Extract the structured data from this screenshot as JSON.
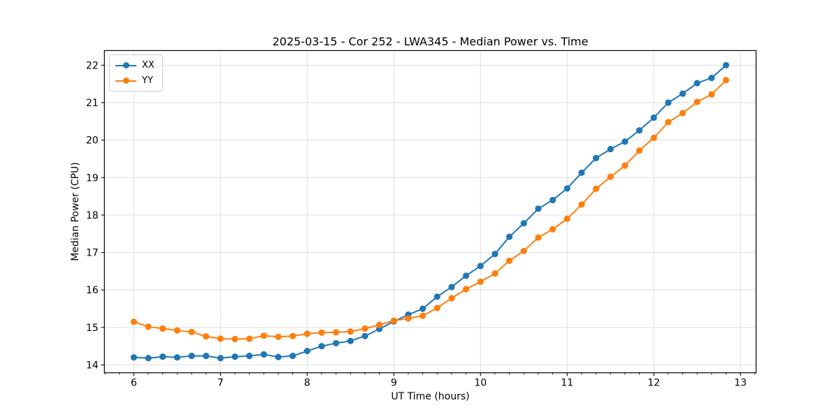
{
  "chart_data": {
    "type": "line",
    "title": "2025-03-15 - Cor 252 - LWA345 - Median Power vs. Time",
    "xlabel": "UT Time (hours)",
    "ylabel": "Median Power (CPU)",
    "xlim": [
      5.66,
      13.18
    ],
    "ylim": [
      13.79,
      22.39
    ],
    "xticks": [
      6,
      7,
      8,
      9,
      10,
      11,
      12,
      13
    ],
    "yticks": [
      14,
      15,
      16,
      17,
      18,
      19,
      20,
      21,
      22
    ],
    "minor_xtick_step": 0.166667,
    "grid": true,
    "grid_color": "#dedede",
    "legend_position": "upper left",
    "x": [
      6.0,
      6.167,
      6.333,
      6.5,
      6.667,
      6.833,
      7.0,
      7.167,
      7.333,
      7.5,
      7.667,
      7.833,
      8.0,
      8.167,
      8.333,
      8.5,
      8.667,
      8.833,
      9.0,
      9.167,
      9.333,
      9.5,
      9.667,
      9.833,
      10.0,
      10.167,
      10.333,
      10.5,
      10.667,
      10.833,
      11.0,
      11.167,
      11.333,
      11.5,
      11.667,
      11.833,
      12.0,
      12.167,
      12.333,
      12.5,
      12.667,
      12.833
    ],
    "series": [
      {
        "name": "XX",
        "color": "#1f77b4",
        "values": [
          14.2,
          14.18,
          14.22,
          14.2,
          14.24,
          14.24,
          14.18,
          14.22,
          14.24,
          14.28,
          14.21,
          14.24,
          14.37,
          14.5,
          14.58,
          14.64,
          14.77,
          14.96,
          15.16,
          15.34,
          15.5,
          15.82,
          16.08,
          16.38,
          16.64,
          16.96,
          17.42,
          17.78,
          18.17,
          18.4,
          18.71,
          19.13,
          19.52,
          19.76,
          19.96,
          20.26,
          20.6,
          21.0,
          21.24,
          21.52,
          21.66,
          22.0
        ]
      },
      {
        "name": "YY",
        "color": "#ff7f0e",
        "values": [
          15.15,
          15.02,
          14.97,
          14.92,
          14.88,
          14.76,
          14.7,
          14.69,
          14.7,
          14.78,
          14.75,
          14.77,
          14.83,
          14.86,
          14.87,
          14.89,
          14.97,
          15.07,
          15.18,
          15.24,
          15.31,
          15.52,
          15.78,
          16.02,
          16.22,
          16.44,
          16.78,
          17.04,
          17.4,
          17.62,
          17.9,
          18.28,
          18.7,
          19.02,
          19.32,
          19.72,
          20.06,
          20.48,
          20.72,
          21.02,
          21.22,
          21.6
        ]
      }
    ]
  }
}
